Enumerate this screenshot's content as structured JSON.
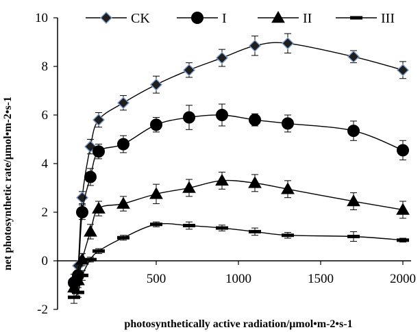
{
  "chart_data": {
    "type": "line",
    "title": "",
    "xlabel": "photosynthetically active radiation/μmol•m-2•s-1",
    "ylabel": "net photosynthetic rate/μmol•m-2•s-1",
    "xlim": [
      -100,
      2050
    ],
    "ylim": [
      -2,
      10
    ],
    "xticks": [
      "500",
      "1000",
      "1500",
      "2000"
    ],
    "yticks": [
      "-2",
      "0",
      "2",
      "4",
      "6",
      "8",
      "10"
    ],
    "grid": false,
    "legend_position": "top",
    "x": [
      0,
      25,
      50,
      100,
      150,
      300,
      500,
      700,
      900,
      1100,
      1300,
      1700,
      2000
    ],
    "series": [
      {
        "name": "CK",
        "marker": "diamond",
        "color": "#000000",
        "marker_fill": "#1f1f1f",
        "marker_edge": "#7f9fd0",
        "values": [
          -0.8,
          -0.2,
          2.6,
          4.7,
          5.8,
          6.5,
          7.25,
          7.85,
          8.35,
          8.85,
          8.95,
          8.4,
          7.85
        ],
        "errors": [
          0.25,
          0.2,
          0.25,
          0.3,
          0.3,
          0.3,
          0.35,
          0.3,
          0.35,
          0.4,
          0.4,
          0.25,
          0.35
        ]
      },
      {
        "name": "I",
        "marker": "circle",
        "color": "#000000",
        "values": [
          -0.9,
          -0.6,
          2.0,
          3.45,
          4.5,
          4.8,
          5.6,
          5.9,
          6.0,
          5.8,
          5.65,
          5.35,
          4.55
        ],
        "errors": [
          0.2,
          0.2,
          0.3,
          0.35,
          0.3,
          0.35,
          0.3,
          0.5,
          0.45,
          0.25,
          0.35,
          0.4,
          0.4
        ]
      },
      {
        "name": "II",
        "marker": "triangle",
        "color": "#000000",
        "values": [
          -1.1,
          -0.8,
          0.05,
          1.2,
          2.15,
          2.35,
          2.75,
          3.0,
          3.3,
          3.2,
          2.95,
          2.45,
          2.1
        ],
        "errors": [
          0.2,
          0.2,
          0.25,
          0.3,
          0.3,
          0.3,
          0.4,
          0.35,
          0.35,
          0.35,
          0.35,
          0.35,
          0.35
        ]
      },
      {
        "name": "III",
        "marker": "dash",
        "color": "#000000",
        "values": [
          -1.5,
          -1.3,
          -0.6,
          0.05,
          0.4,
          0.95,
          1.5,
          1.45,
          1.35,
          1.2,
          1.05,
          1.0,
          0.85
        ],
        "errors": [
          0.25,
          0.2,
          0.2,
          0.1,
          0.1,
          0.1,
          0.1,
          0.15,
          0.12,
          0.15,
          0.12,
          0.2,
          0.08
        ]
      }
    ]
  }
}
